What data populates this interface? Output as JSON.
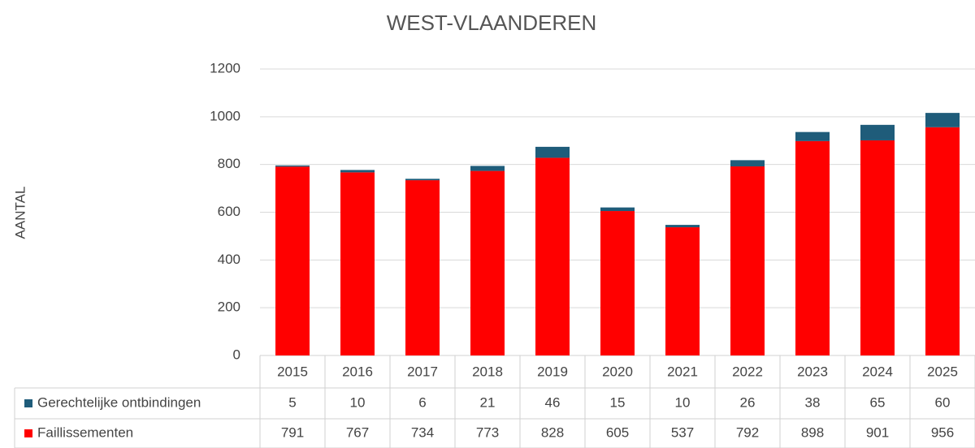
{
  "chart_data": {
    "type": "stacked-bar",
    "title": "WEST-VLAANDEREN",
    "y_label": "AANTAL",
    "categories": [
      "2015",
      "2016",
      "2017",
      "2018",
      "2019",
      "2020",
      "2021",
      "2022",
      "2023",
      "2024",
      "2025"
    ],
    "series": [
      {
        "name": "Gerechtelijke ontbindingen",
        "color": "#1f5c7a",
        "values": [
          5,
          10,
          6,
          21,
          46,
          15,
          10,
          26,
          38,
          65,
          60
        ]
      },
      {
        "name": "Faillissementen",
        "color": "#ff0000",
        "values": [
          791,
          767,
          734,
          773,
          828,
          605,
          537,
          792,
          898,
          901,
          956
        ]
      }
    ],
    "ylim": [
      0,
      1200
    ],
    "yticks": [
      0,
      200,
      400,
      600,
      800,
      1000,
      1200
    ],
    "grid": true
  }
}
